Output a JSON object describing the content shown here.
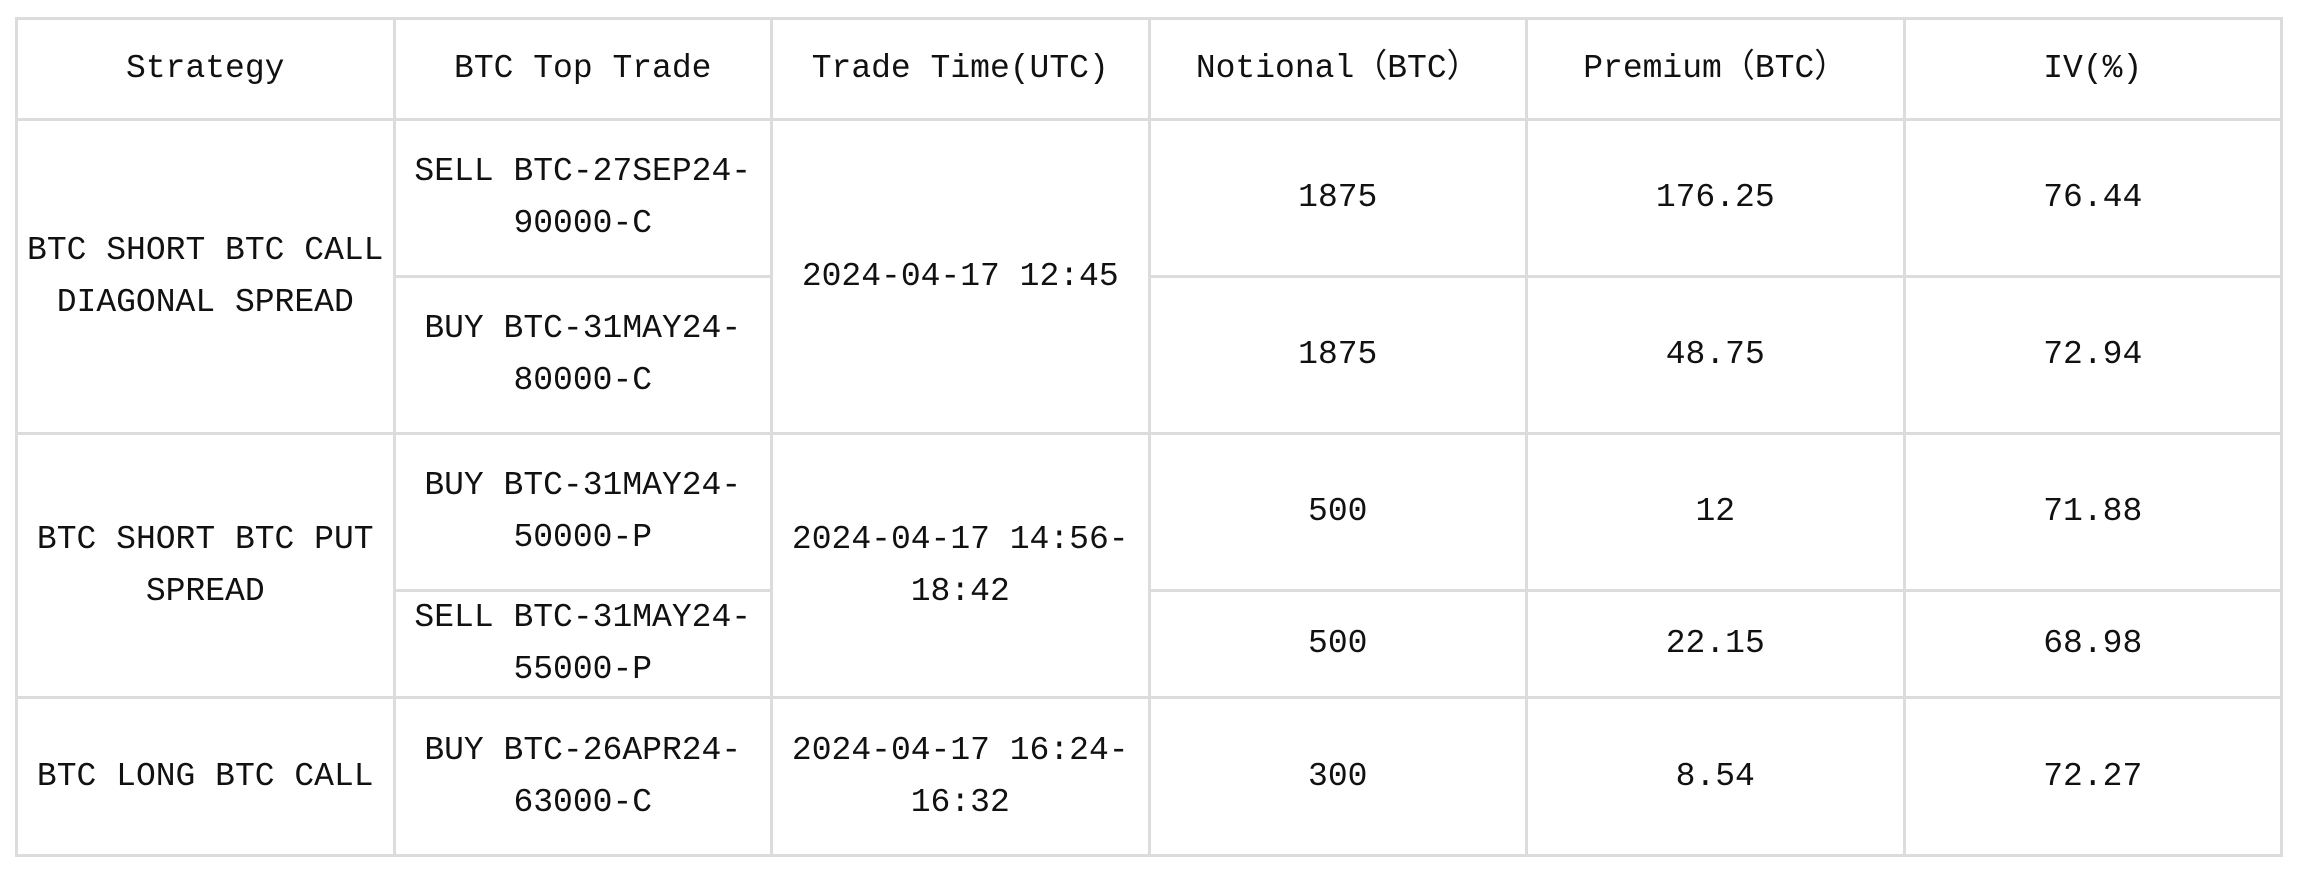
{
  "headers": [
    "Strategy",
    "BTC Top Trade",
    "Trade Time(UTC)",
    "Notional（BTC）",
    "Premium（BTC）",
    "IV(%)"
  ],
  "groups": [
    {
      "strategy": "BTC SHORT BTC CALL DIAGONAL SPREAD",
      "time": "2024-04-17 12:45",
      "legs": [
        {
          "trade": "SELL BTC-27SEP24-90000-C",
          "notional": "1875",
          "premium": "176.25",
          "iv": "76.44"
        },
        {
          "trade": "BUY BTC-31MAY24-80000-C",
          "notional": "1875",
          "premium": "48.75",
          "iv": "72.94"
        }
      ]
    },
    {
      "strategy": "BTC SHORT BTC PUT SPREAD",
      "time": "2024-04-17 14:56-18:42",
      "legs": [
        {
          "trade": "BUY BTC-31MAY24-50000-P",
          "notional": "500",
          "premium": "12",
          "iv": "71.88"
        },
        {
          "trade": "SELL BTC-31MAY24-55000-P",
          "notional": "500",
          "premium": "22.15",
          "iv": "68.98"
        }
      ]
    },
    {
      "strategy": "BTC LONG BTC CALL",
      "time": "2024-04-17 16:24-16:32",
      "legs": [
        {
          "trade": "BUY BTC-26APR24-63000-C",
          "notional": "300",
          "premium": "8.54",
          "iv": "72.27"
        }
      ]
    }
  ]
}
